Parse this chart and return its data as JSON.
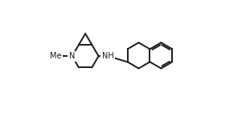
{
  "bg_color": "#ffffff",
  "line_color": "#1a1a1a",
  "line_width": 1.4,
  "font_size": 7.0,
  "label_color": "#1a1a1a",
  "xlim": [
    -0.05,
    1.08
  ],
  "ylim": [
    0.08,
    1.0
  ]
}
